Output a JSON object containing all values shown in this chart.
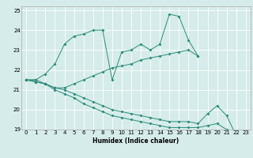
{
  "xlabel": "Humidex (Indice chaleur)",
  "background_color": "#d5ecea",
  "grid_color": "#ffffff",
  "line_color": "#2e8b7a",
  "xlim": [
    -0.5,
    23.5
  ],
  "ylim": [
    19,
    25.2
  ],
  "xtick_labels": [
    "0",
    "1",
    "2",
    "3",
    "4",
    "5",
    "6",
    "7",
    "8",
    "9",
    "10",
    "11",
    "12",
    "13",
    "14",
    "15",
    "16",
    "17",
    "18",
    "19",
    "20",
    "21",
    "22",
    "23"
  ],
  "yticks": [
    19,
    20,
    21,
    22,
    23,
    24,
    25
  ],
  "series1_x": [
    0,
    1,
    2,
    3,
    4,
    5,
    6,
    7,
    8,
    9,
    10,
    11,
    12,
    13,
    14,
    15,
    16,
    17,
    18
  ],
  "series1_y": [
    21.5,
    21.5,
    21.8,
    22.3,
    23.3,
    23.7,
    23.8,
    24.0,
    24.0,
    21.5,
    22.9,
    23.0,
    23.3,
    23.0,
    23.3,
    24.8,
    24.7,
    23.5,
    22.7
  ],
  "series2_x": [
    0,
    1,
    2,
    3,
    4,
    5,
    6,
    7,
    8,
    9,
    10,
    11,
    12,
    13,
    14,
    15,
    16,
    17,
    18
  ],
  "series2_y": [
    21.5,
    21.5,
    21.3,
    21.1,
    21.1,
    21.3,
    21.5,
    21.7,
    21.9,
    22.1,
    22.2,
    22.3,
    22.5,
    22.6,
    22.7,
    22.8,
    22.9,
    23.0,
    22.7
  ],
  "series3_x": [
    0,
    1,
    2,
    3,
    4,
    5,
    6,
    7,
    8,
    9,
    10,
    11,
    12,
    13,
    14,
    15,
    16,
    17,
    18,
    19,
    20,
    21,
    22
  ],
  "series3_y": [
    21.5,
    21.4,
    21.3,
    21.1,
    21.0,
    20.8,
    20.6,
    20.4,
    20.2,
    20.0,
    19.9,
    19.8,
    19.7,
    19.6,
    19.5,
    19.4,
    19.4,
    19.4,
    19.3,
    19.8,
    20.2,
    19.7,
    18.7
  ],
  "series4_x": [
    0,
    1,
    2,
    3,
    4,
    5,
    6,
    7,
    8,
    9,
    10,
    11,
    12,
    13,
    14,
    15,
    16,
    17,
    18,
    19,
    20,
    21,
    22
  ],
  "series4_y": [
    21.5,
    21.4,
    21.3,
    21.0,
    20.8,
    20.6,
    20.3,
    20.1,
    19.9,
    19.7,
    19.6,
    19.5,
    19.4,
    19.3,
    19.2,
    19.1,
    19.1,
    19.1,
    19.1,
    19.2,
    19.3,
    19.0,
    18.7
  ]
}
